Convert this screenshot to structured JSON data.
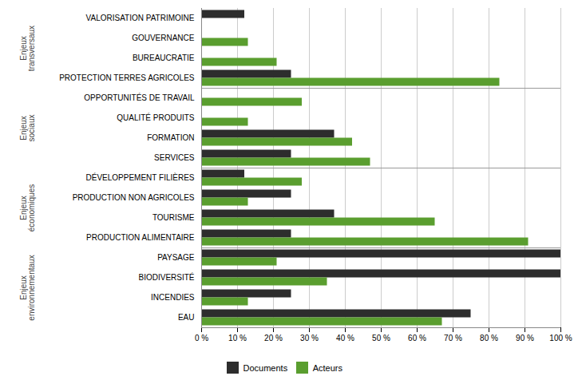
{
  "chart_data": {
    "type": "bar",
    "orientation": "horizontal",
    "categories": [
      "VALORISATION PATRIMOINE",
      "GOUVERNANCE",
      "BUREAUCRATIE",
      "PROTECTION TERRES AGRICOLES",
      "OPPORTUNITÉS DE TRAVAIL",
      "QUALITÉ PRODUITS",
      "FORMATION",
      "SERVICES",
      "DÉVELOPPEMENT FILIÈRES",
      "PRODUCTION NON AGRICOLES",
      "TOURISME",
      "PRODUCTION ALIMENTAIRE",
      "PAYSAGE",
      "BIODIVERSITÉ",
      "INCENDIES",
      "EAU"
    ],
    "series": [
      {
        "name": "Documents",
        "color": "#2d2d2d",
        "values": [
          12,
          0,
          0,
          25,
          0,
          0,
          37,
          25,
          12,
          25,
          37,
          25,
          100,
          100,
          25,
          75
        ]
      },
      {
        "name": "Acteurs",
        "color": "#5a9e2f",
        "values": [
          0,
          13,
          21,
          83,
          28,
          13,
          42,
          47,
          28,
          13,
          65,
          91,
          21,
          35,
          13,
          67
        ]
      }
    ],
    "groups": [
      {
        "name": "Enjeux\ntransversaux",
        "categories": [
          "VALORISATION PATRIMOINE",
          "GOUVERNANCE",
          "BUREAUCRATIE",
          "PROTECTION TERRES AGRICOLES"
        ]
      },
      {
        "name": "Enjeux\nsociaux",
        "categories": [
          "OPPORTUNITÉS DE TRAVAIL",
          "QUALITÉ PRODUITS",
          "FORMATION",
          "SERVICES"
        ]
      },
      {
        "name": "Enjeux\néconomiques",
        "categories": [
          "DÉVELOPPEMENT FILIÈRES",
          "PRODUCTION NON AGRICOLES",
          "TOURISME",
          "PRODUCTION ALIMENTAIRE"
        ]
      },
      {
        "name": "Enjeux\nenvironnementaux",
        "categories": [
          "PAYSAGE",
          "BIODIVERSITÉ",
          "INCENDIES",
          "EAU"
        ]
      }
    ],
    "xlim": [
      0,
      100
    ],
    "xticks": [
      {
        "value": 0,
        "label": "0 %"
      },
      {
        "value": 10,
        "label": "10 %"
      },
      {
        "value": 20,
        "label": "20 %"
      },
      {
        "value": 30,
        "label": "30 %"
      },
      {
        "value": 40,
        "label": "40 %"
      },
      {
        "value": 50,
        "label": "50 %"
      },
      {
        "value": 60,
        "label": "60 %"
      },
      {
        "value": 70,
        "label": "70 %"
      },
      {
        "value": 80,
        "label": "80 %"
      },
      {
        "value": 90,
        "label": "90 %"
      },
      {
        "value": 100,
        "label": "100 %"
      }
    ],
    "grid": true,
    "legend": "bottom"
  }
}
